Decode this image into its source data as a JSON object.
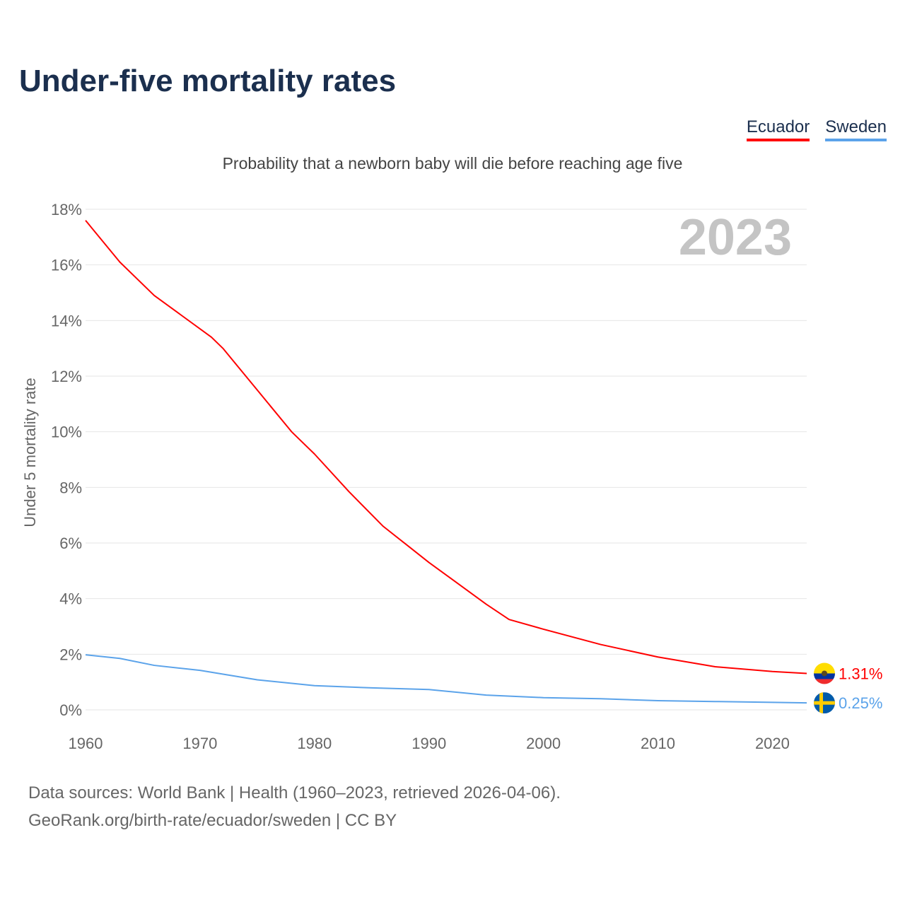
{
  "title": "Under-five mortality rates",
  "subtitle": "Probability that a newborn baby will die before reaching age five",
  "legend": [
    {
      "name": "Ecuador",
      "color": "#ff0000"
    },
    {
      "name": "Sweden",
      "color": "#5ba3ea"
    }
  ],
  "footer": {
    "line1": "Data sources: World Bank | Health (1960–2023, retrieved 2026-04-06).",
    "line2": "GeoRank.org/birth-rate/ecuador/sweden | CC BY"
  },
  "chart_data": {
    "type": "line",
    "title": "Under-five mortality rates",
    "ylabel": "Under 5 mortality rate",
    "xlabel": "",
    "year_label": "2023",
    "xlim": [
      1960,
      2023
    ],
    "ylim": [
      0,
      18
    ],
    "xticks": [
      1960,
      1970,
      1980,
      1990,
      2000,
      2010,
      2020
    ],
    "yticks": [
      0,
      2,
      4,
      6,
      8,
      10,
      12,
      14,
      16,
      18
    ],
    "ytick_labels": [
      "0%",
      "2%",
      "4%",
      "6%",
      "8%",
      "10%",
      "12%",
      "14%",
      "16%",
      "18%"
    ],
    "grid": true,
    "series": [
      {
        "name": "Ecuador",
        "color": "#ff0000",
        "end_label": "1.31%",
        "flag": "ecuador-flag",
        "x": [
          1960,
          1963,
          1966,
          1971,
          1972,
          1975,
          1978,
          1980,
          1983,
          1986,
          1988,
          1990,
          1995,
          1997,
          2000,
          2005,
          2010,
          2015,
          2020,
          2023
        ],
        "y": [
          17.6,
          16.1,
          14.9,
          13.4,
          13.0,
          11.5,
          10.0,
          9.2,
          7.85,
          6.6,
          5.95,
          5.3,
          3.8,
          3.25,
          2.9,
          2.35,
          1.9,
          1.55,
          1.38,
          1.31
        ]
      },
      {
        "name": "Sweden",
        "color": "#5ba3ea",
        "end_label": "0.25%",
        "flag": "sweden-flag",
        "x": [
          1960,
          1963,
          1966,
          1970,
          1975,
          1980,
          1985,
          1990,
          1995,
          2000,
          2005,
          2010,
          2015,
          2020,
          2023
        ],
        "y": [
          1.98,
          1.85,
          1.6,
          1.42,
          1.08,
          0.87,
          0.79,
          0.73,
          0.53,
          0.44,
          0.4,
          0.33,
          0.3,
          0.27,
          0.25
        ]
      }
    ]
  }
}
